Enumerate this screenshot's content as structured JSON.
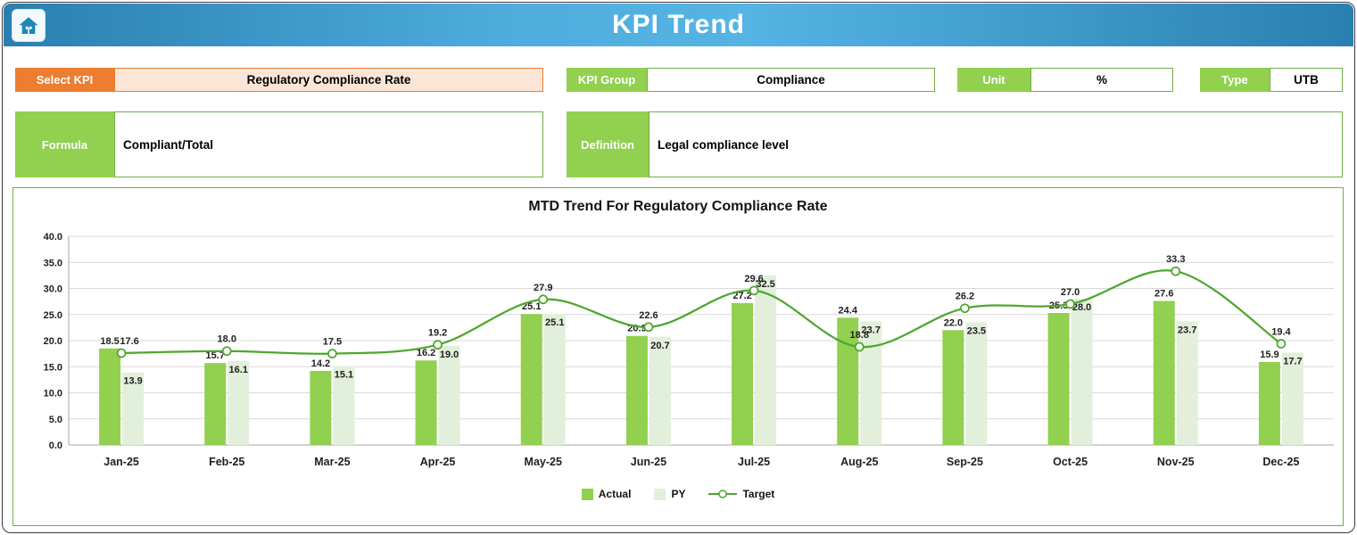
{
  "header": {
    "title": "KPI Trend"
  },
  "fields": {
    "select_kpi": {
      "label": "Select KPI",
      "value": "Regulatory Compliance Rate"
    },
    "kpi_group": {
      "label": "KPI Group",
      "value": "Compliance"
    },
    "unit": {
      "label": "Unit",
      "value": "%"
    },
    "type": {
      "label": "Type",
      "value": "UTB"
    },
    "formula": {
      "label": "Formula",
      "value": "Compliant/Total"
    },
    "definition": {
      "label": "Definition",
      "value": "Legal compliance level"
    }
  },
  "colors": {
    "accent_orange": "#ED7D31",
    "accent_orange_fill": "#FBE5D6",
    "accent_green": "#92D050",
    "green_border": "#70AD47",
    "grid": "#D9D9D9",
    "axis": "#A6A6A6",
    "label_text": "#1f1f1f"
  },
  "chart_data": {
    "type": "bar",
    "title": "MTD Trend For Regulatory Compliance Rate",
    "categories": [
      "Jan-25",
      "Feb-25",
      "Mar-25",
      "Apr-25",
      "May-25",
      "Jun-25",
      "Jul-25",
      "Aug-25",
      "Sep-25",
      "Oct-25",
      "Nov-25",
      "Dec-25"
    ],
    "series": [
      {
        "name": "Actual",
        "type": "bar",
        "color": "#92D050",
        "values": [
          18.5,
          15.7,
          14.2,
          16.2,
          25.1,
          20.9,
          27.2,
          24.4,
          22.0,
          25.3,
          27.6,
          15.9
        ]
      },
      {
        "name": "PY",
        "type": "bar",
        "color": "#E2EFDA",
        "values": [
          13.9,
          16.1,
          15.1,
          19.0,
          25.1,
          20.7,
          32.5,
          23.7,
          23.5,
          28.0,
          23.7,
          17.7
        ]
      },
      {
        "name": "Target",
        "type": "line",
        "color": "#4EA72E",
        "values": [
          17.6,
          18.0,
          17.5,
          19.2,
          27.9,
          22.6,
          29.6,
          18.8,
          26.2,
          27.0,
          33.3,
          19.4
        ]
      }
    ],
    "xlabel": "",
    "ylabel": "",
    "ylim": [
      0,
      40
    ],
    "ytick_step": 5,
    "grid": true,
    "legend_position": "bottom"
  }
}
